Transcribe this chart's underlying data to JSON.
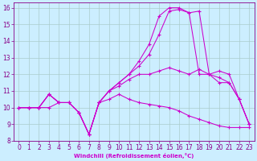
{
  "bg_color": "#cceeff",
  "line_color": "#cc00cc",
  "grid_color": "#aacccc",
  "xlabel": "Windchill (Refroidissement éolien,°C)",
  "xlabel_color": "#cc00cc",
  "tick_color": "#880088",
  "xlim": [
    -0.5,
    23.5
  ],
  "ylim": [
    8,
    16.3
  ],
  "yticks": [
    8,
    9,
    10,
    11,
    12,
    13,
    14,
    15,
    16
  ],
  "xticks": [
    0,
    1,
    2,
    3,
    4,
    5,
    6,
    7,
    8,
    9,
    10,
    11,
    12,
    13,
    14,
    15,
    16,
    17,
    18,
    19,
    20,
    21,
    22,
    23
  ],
  "series": [
    {
      "x": [
        0,
        1,
        2,
        3,
        4,
        5,
        6,
        7,
        8,
        9,
        10,
        11,
        12,
        13,
        14,
        15,
        16,
        17,
        18,
        19,
        20,
        21,
        22,
        23
      ],
      "y": [
        10.0,
        10.0,
        10.0,
        10.0,
        10.3,
        10.3,
        9.7,
        8.4,
        10.3,
        10.5,
        10.8,
        10.5,
        10.3,
        10.2,
        10.1,
        10.0,
        9.8,
        9.5,
        9.3,
        9.1,
        8.9,
        8.8,
        8.8,
        8.8
      ]
    },
    {
      "x": [
        0,
        1,
        2,
        3,
        4,
        5,
        6,
        7,
        8,
        9,
        10,
        11,
        12,
        13,
        14,
        15,
        16,
        17,
        18,
        19,
        20,
        21,
        22,
        23
      ],
      "y": [
        10.0,
        10.0,
        10.0,
        10.8,
        10.3,
        10.3,
        9.7,
        8.4,
        10.3,
        11.0,
        11.3,
        11.7,
        12.0,
        12.0,
        12.2,
        12.4,
        12.2,
        12.0,
        12.3,
        12.0,
        11.8,
        11.5,
        10.5,
        9.0
      ]
    },
    {
      "x": [
        0,
        1,
        2,
        3,
        4,
        5,
        6,
        7,
        8,
        9,
        10,
        11,
        12,
        13,
        14,
        15,
        16,
        17,
        18,
        19,
        20,
        21,
        22,
        23
      ],
      "y": [
        10.0,
        10.0,
        10.0,
        10.8,
        10.3,
        10.3,
        9.7,
        8.4,
        10.3,
        11.0,
        11.5,
        12.0,
        12.5,
        13.2,
        14.4,
        15.8,
        15.9,
        15.7,
        12.0,
        12.0,
        11.5,
        11.5,
        10.5,
        9.0
      ]
    },
    {
      "x": [
        0,
        1,
        2,
        3,
        4,
        5,
        6,
        7,
        8,
        9,
        10,
        11,
        12,
        13,
        14,
        15,
        16,
        17,
        18,
        19,
        20,
        21,
        22,
        23
      ],
      "y": [
        10.0,
        10.0,
        10.0,
        10.8,
        10.3,
        10.3,
        9.7,
        8.4,
        10.3,
        11.0,
        11.5,
        12.0,
        12.8,
        13.8,
        15.5,
        16.0,
        16.0,
        15.7,
        15.8,
        12.0,
        12.2,
        12.0,
        10.5,
        9.0
      ]
    }
  ]
}
